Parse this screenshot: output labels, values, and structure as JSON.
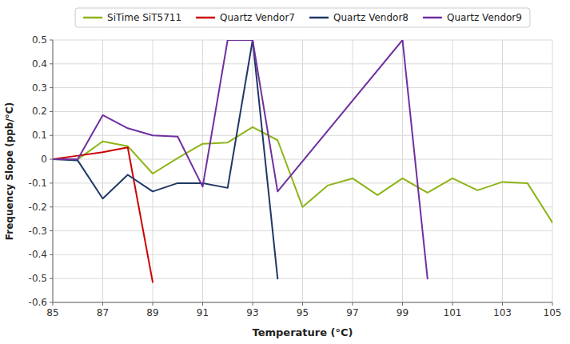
{
  "chart_data": {
    "type": "line",
    "xlabel": "Temperature (°C)",
    "ylabel": "Frequency Slope (ppb/°C)",
    "series": [
      {
        "name": "SiTime SiT5711",
        "color": "#8DB417",
        "x": [
          85,
          86,
          87,
          88,
          89,
          90,
          91,
          92,
          93,
          94,
          95,
          96,
          97,
          98,
          99,
          100,
          101,
          102,
          103,
          104,
          105
        ],
        "values": [
          0.0,
          0.0,
          0.075,
          0.055,
          -0.06,
          0.005,
          0.065,
          0.07,
          0.135,
          0.08,
          -0.2,
          -0.11,
          -0.08,
          -0.15,
          -0.08,
          -0.14,
          -0.08,
          -0.13,
          -0.095,
          -0.1,
          -0.265
        ]
      },
      {
        "name": "Quartz Vendor7",
        "color": "#CC0000",
        "x": [
          85,
          86,
          87,
          88,
          89
        ],
        "values": [
          0.0,
          0.015,
          0.03,
          0.05,
          -0.515
        ]
      },
      {
        "name": "Quartz Vendor8",
        "color": "#1F3864",
        "x": [
          85,
          86,
          87,
          88,
          89,
          90,
          91,
          92,
          93,
          94
        ],
        "values": [
          0.0,
          -0.005,
          -0.165,
          -0.065,
          -0.135,
          -0.1,
          -0.1,
          -0.12,
          0.5,
          -0.5
        ]
      },
      {
        "name": "Quartz Vendor9",
        "color": "#7030A0",
        "x": [
          85,
          86,
          87,
          88,
          89,
          90,
          91,
          92,
          93,
          94,
          99,
          100
        ],
        "values": [
          0.0,
          0.0,
          0.185,
          0.13,
          0.1,
          0.095,
          -0.115,
          0.5,
          0.5,
          -0.135,
          0.5,
          -0.5
        ]
      }
    ],
    "xlim": [
      85,
      105
    ],
    "ylim": [
      -0.6,
      0.5
    ],
    "xticks": [
      85,
      87,
      89,
      91,
      93,
      95,
      97,
      99,
      101,
      103,
      105
    ],
    "yticks": [
      -0.6,
      -0.5,
      -0.4,
      -0.3,
      -0.2,
      -0.1,
      0.0,
      0.1,
      0.2,
      0.3,
      0.4,
      0.5
    ],
    "grid": true,
    "legend": "top"
  }
}
